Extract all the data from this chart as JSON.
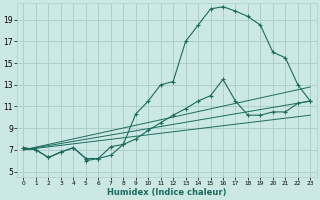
{
  "xlabel": "Humidex (Indice chaleur)",
  "bg_color": "#cce8e4",
  "grid_color": "#aecfcb",
  "line_color": "#1a6b5e",
  "xlim": [
    -0.5,
    23.5
  ],
  "ylim": [
    4.5,
    20.5
  ],
  "xticks": [
    0,
    1,
    2,
    3,
    4,
    5,
    6,
    7,
    8,
    9,
    10,
    11,
    12,
    13,
    14,
    15,
    16,
    17,
    18,
    19,
    20,
    21,
    22,
    23
  ],
  "yticks": [
    5,
    7,
    9,
    11,
    13,
    15,
    17,
    19
  ],
  "series1_x": [
    0,
    1,
    2,
    3,
    4,
    5,
    5,
    6,
    7,
    8,
    9,
    10,
    11,
    12,
    13,
    14,
    15,
    16,
    17,
    18,
    19,
    20,
    21,
    22,
    23
  ],
  "series1_y": [
    7.2,
    7.0,
    6.3,
    6.8,
    7.2,
    6.2,
    6.0,
    6.2,
    7.3,
    7.5,
    10.3,
    11.5,
    13.0,
    13.3,
    17.0,
    18.5,
    20.0,
    20.2,
    19.8,
    19.3,
    18.5,
    16.0,
    15.5,
    13.0,
    11.5
  ],
  "series2_x": [
    0,
    1,
    2,
    3,
    4,
    5,
    6,
    7,
    8,
    9,
    10,
    11,
    12,
    13,
    14,
    15,
    16,
    17,
    18,
    19,
    20,
    21,
    22,
    23
  ],
  "series2_y": [
    7.2,
    7.0,
    6.3,
    6.8,
    7.2,
    6.2,
    6.2,
    6.5,
    7.5,
    8.0,
    8.8,
    9.5,
    10.2,
    10.8,
    11.5,
    12.0,
    13.5,
    11.5,
    10.2,
    10.2,
    10.5,
    10.5,
    11.3,
    11.5
  ],
  "line1_x": [
    0,
    23
  ],
  "line1_y": [
    7.0,
    11.5
  ],
  "line2_x": [
    0,
    23
  ],
  "line2_y": [
    7.0,
    12.8
  ],
  "line3_x": [
    0,
    23
  ],
  "line3_y": [
    7.0,
    10.2
  ]
}
